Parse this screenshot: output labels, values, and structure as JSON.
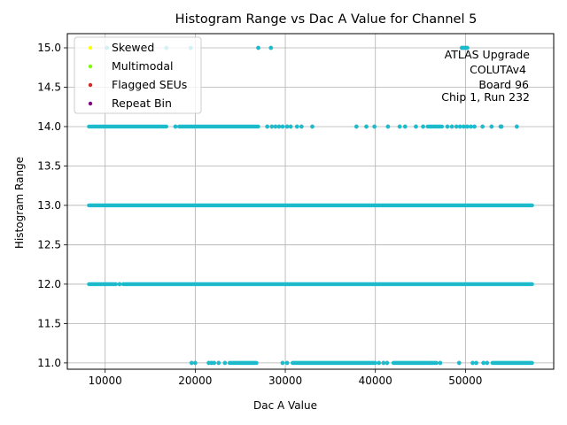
{
  "chart_data": {
    "type": "scatter",
    "title": "Histogram Range vs Dac A Value for Channel 5",
    "xlabel": "Dac A Value",
    "ylabel": "Histogram Range",
    "xlim": [
      5800,
      59800
    ],
    "ylim": [
      10.92,
      15.18
    ],
    "xticks": [
      10000,
      20000,
      30000,
      40000,
      50000
    ],
    "yticks": [
      11.0,
      11.5,
      12.0,
      12.5,
      13.0,
      13.5,
      14.0,
      14.5,
      15.0
    ],
    "grid": true,
    "legend_position": "top-left",
    "point_color": "#17becf",
    "series": [
      {
        "name": "Skewed",
        "color": "#ffff00",
        "x": [],
        "y": []
      },
      {
        "name": "Multimodal",
        "color": "#7fff00",
        "x": [],
        "y": []
      },
      {
        "name": "Flagged SEUs",
        "color": "#d62728",
        "x": [],
        "y": []
      },
      {
        "name": "Repeat Bin",
        "color": "#800080",
        "x": [],
        "y": []
      }
    ],
    "bands": [
      {
        "y": 13.0,
        "ranges": [
          [
            8200,
            57400
          ]
        ]
      },
      {
        "y": 12.0,
        "ranges": [
          [
            8200,
            11200
          ],
          [
            12000,
            57400
          ]
        ]
      },
      {
        "y": 14.0,
        "ranges": [
          [
            8200,
            16800
          ],
          [
            18200,
            27000
          ],
          [
            45800,
            47400
          ]
        ]
      },
      {
        "y": 11.0,
        "ranges": [
          [
            23800,
            26800
          ],
          [
            30800,
            40000
          ],
          [
            42000,
            46800
          ],
          [
            53000,
            57400
          ]
        ]
      }
    ],
    "scatter_points": [
      {
        "x": 19600,
        "y": 11.0
      },
      {
        "x": 20000,
        "y": 11.0
      },
      {
        "x": 21500,
        "y": 11.0
      },
      {
        "x": 21800,
        "y": 11.0
      },
      {
        "x": 22100,
        "y": 11.0
      },
      {
        "x": 22600,
        "y": 11.0
      },
      {
        "x": 23300,
        "y": 11.0
      },
      {
        "x": 29700,
        "y": 11.0
      },
      {
        "x": 30200,
        "y": 11.0
      },
      {
        "x": 40400,
        "y": 11.0
      },
      {
        "x": 40900,
        "y": 11.0
      },
      {
        "x": 41300,
        "y": 11.0
      },
      {
        "x": 47200,
        "y": 11.0
      },
      {
        "x": 49300,
        "y": 11.0
      },
      {
        "x": 50800,
        "y": 11.0
      },
      {
        "x": 51200,
        "y": 11.0
      },
      {
        "x": 52000,
        "y": 11.0
      },
      {
        "x": 52400,
        "y": 11.0
      },
      {
        "x": 11600,
        "y": 12.0
      },
      {
        "x": 17800,
        "y": 14.0
      },
      {
        "x": 28000,
        "y": 14.0
      },
      {
        "x": 28500,
        "y": 14.0
      },
      {
        "x": 28900,
        "y": 14.0
      },
      {
        "x": 29300,
        "y": 14.0
      },
      {
        "x": 29700,
        "y": 14.0
      },
      {
        "x": 30200,
        "y": 14.0
      },
      {
        "x": 30600,
        "y": 14.0
      },
      {
        "x": 31300,
        "y": 14.0
      },
      {
        "x": 31800,
        "y": 14.0
      },
      {
        "x": 33000,
        "y": 14.0
      },
      {
        "x": 37900,
        "y": 14.0
      },
      {
        "x": 39000,
        "y": 14.0
      },
      {
        "x": 39900,
        "y": 14.0
      },
      {
        "x": 41400,
        "y": 14.0
      },
      {
        "x": 42700,
        "y": 14.0
      },
      {
        "x": 43300,
        "y": 14.0
      },
      {
        "x": 44500,
        "y": 14.0
      },
      {
        "x": 45300,
        "y": 14.0
      },
      {
        "x": 48000,
        "y": 14.0
      },
      {
        "x": 48500,
        "y": 14.0
      },
      {
        "x": 49000,
        "y": 14.0
      },
      {
        "x": 49400,
        "y": 14.0
      },
      {
        "x": 49800,
        "y": 14.0
      },
      {
        "x": 50200,
        "y": 14.0
      },
      {
        "x": 50600,
        "y": 14.0
      },
      {
        "x": 51000,
        "y": 14.0
      },
      {
        "x": 51900,
        "y": 14.0
      },
      {
        "x": 52900,
        "y": 14.0
      },
      {
        "x": 53900,
        "y": 14.0
      },
      {
        "x": 54000,
        "y": 14.0
      },
      {
        "x": 55700,
        "y": 14.0
      },
      {
        "x": 10200,
        "y": 15.0
      },
      {
        "x": 16800,
        "y": 15.0
      },
      {
        "x": 19500,
        "y": 15.0
      },
      {
        "x": 27000,
        "y": 15.0
      },
      {
        "x": 28400,
        "y": 15.0
      },
      {
        "x": 49600,
        "y": 15.0
      },
      {
        "x": 49800,
        "y": 15.0
      },
      {
        "x": 50000,
        "y": 15.0
      },
      {
        "x": 50200,
        "y": 15.0
      }
    ],
    "annotation": [
      "ATLAS Upgrade",
      "COLUTAv4",
      "Board 96",
      "Chip 1, Run 232"
    ]
  }
}
